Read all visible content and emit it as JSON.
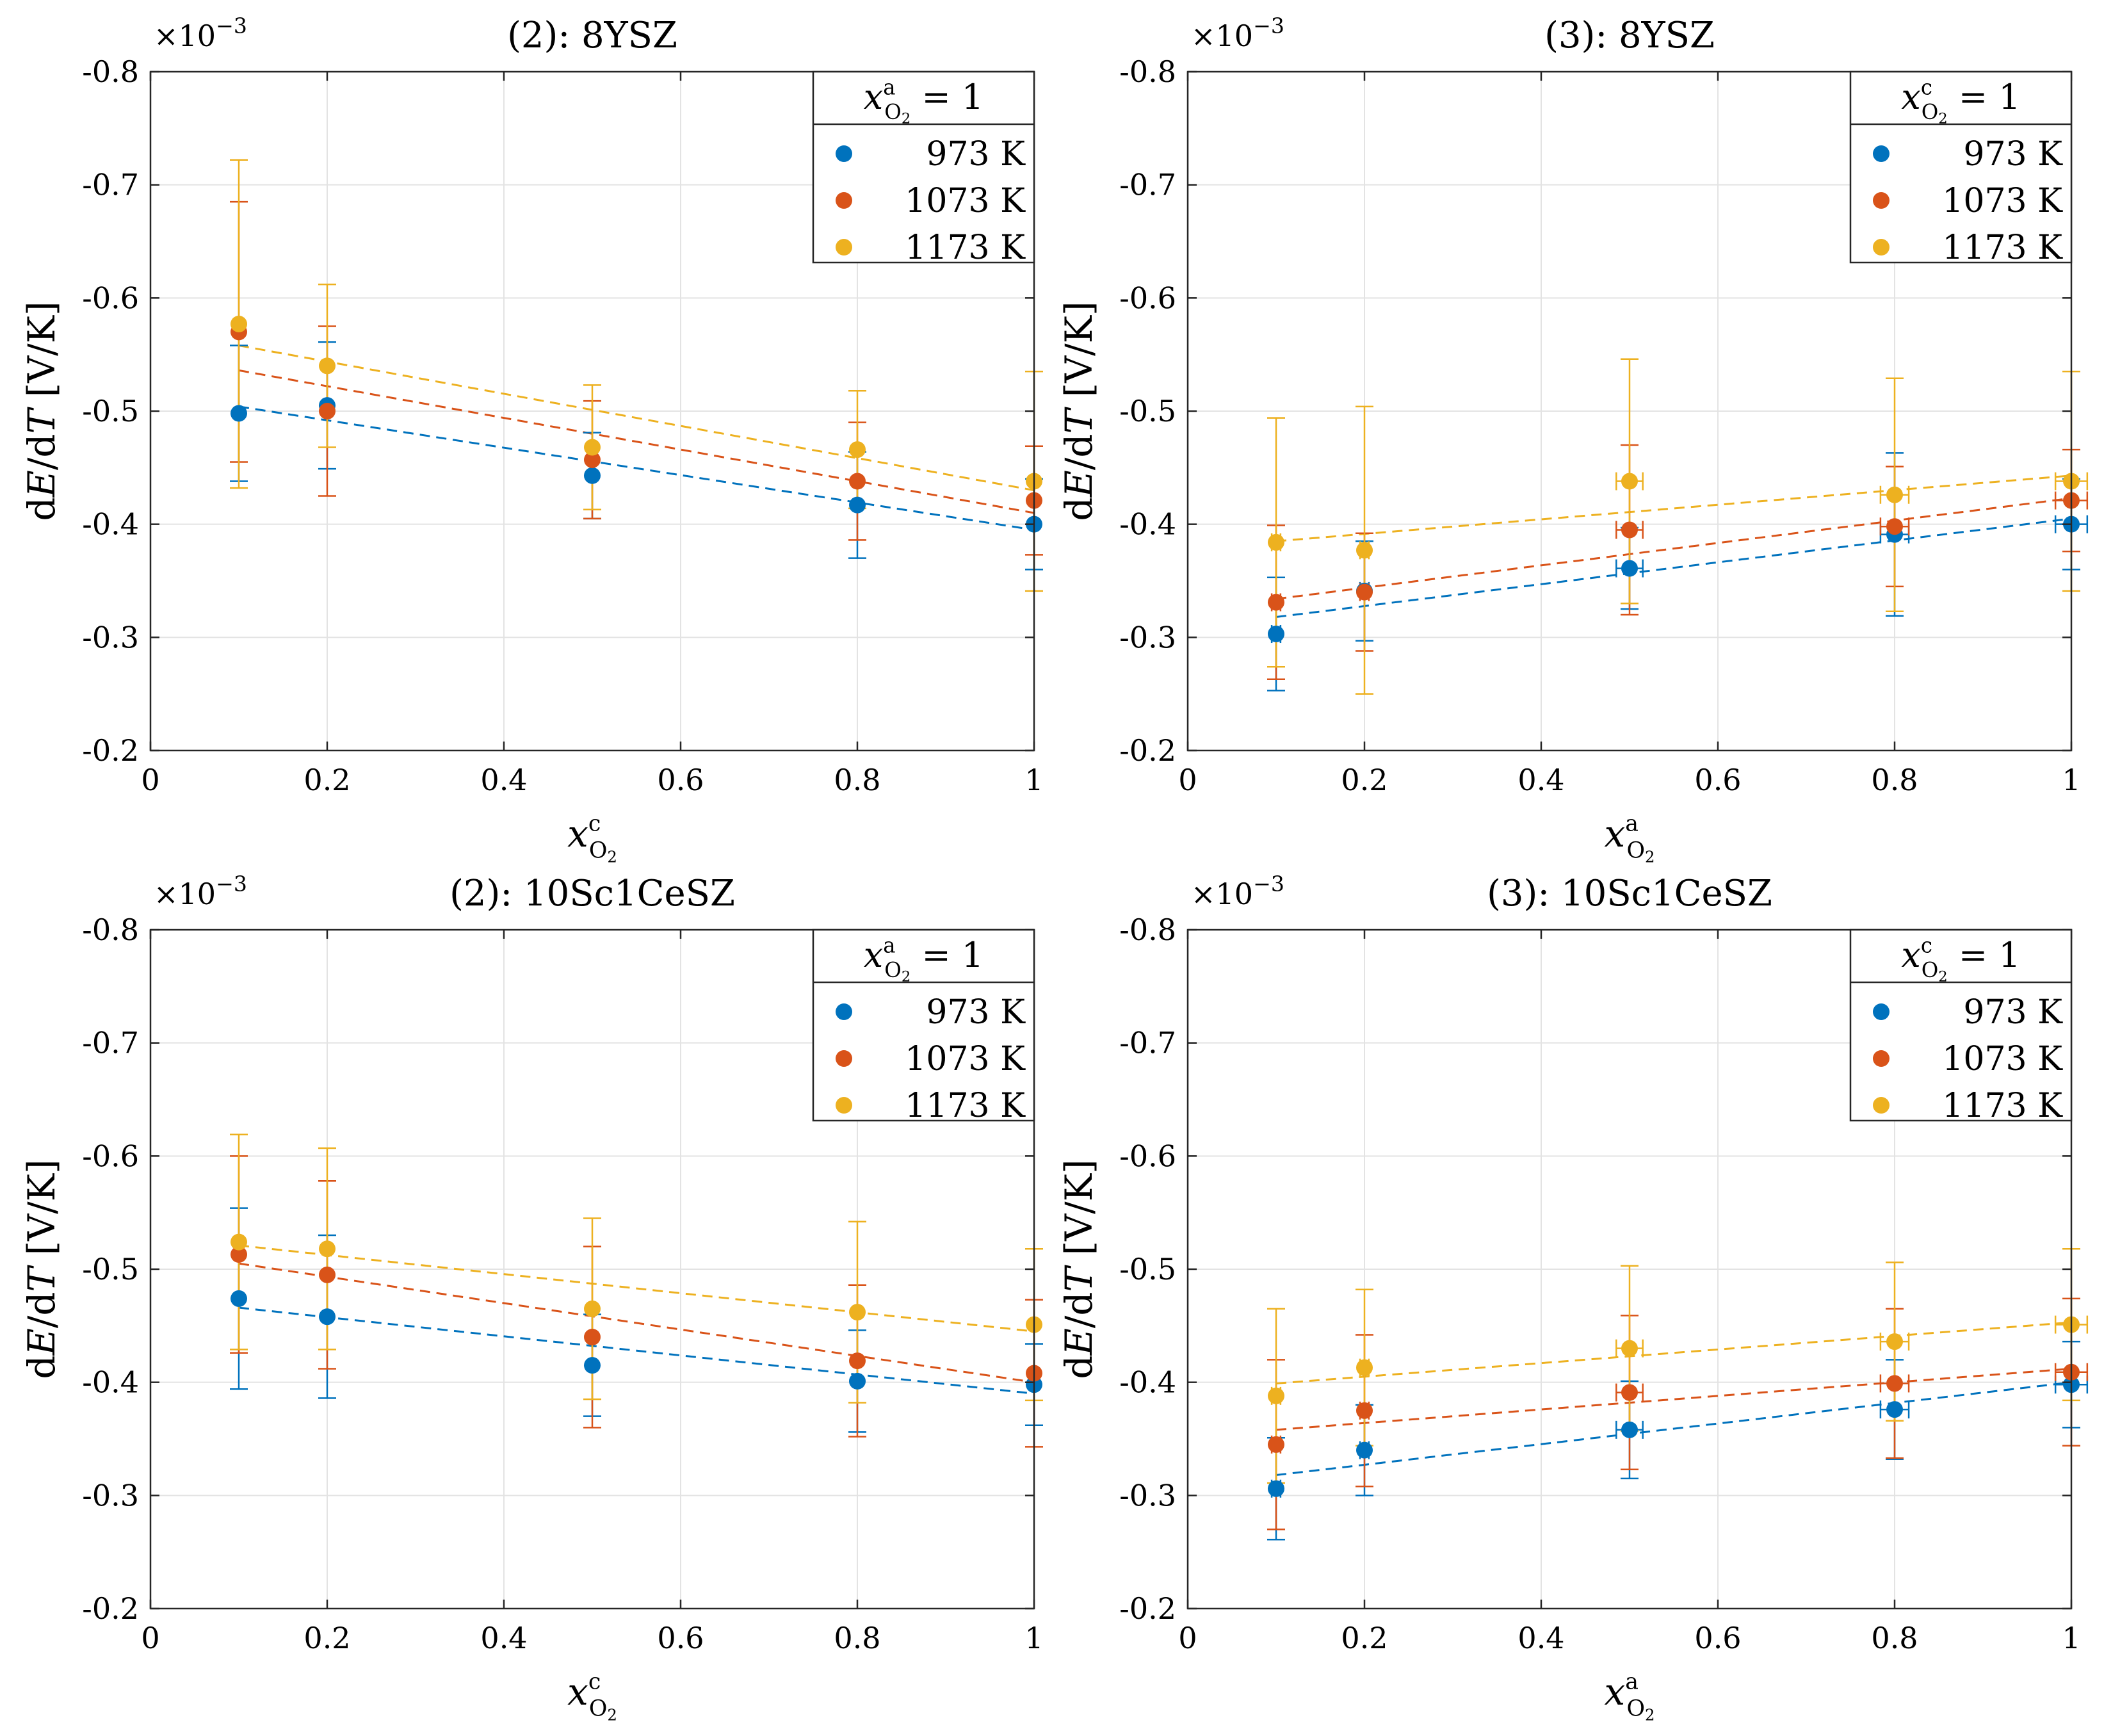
{
  "figure": {
    "panels": [
      {
        "title": "(2):  8YSZ",
        "xlabel": "x^c_O2",
        "ylabel": "dE/dT [V/K]",
        "multiplier": "×10^−3",
        "legend_title": "x^a_O2 = 1"
      },
      {
        "title": "(3):  8YSZ",
        "xlabel": "x^a_O2",
        "ylabel": "dE/dT [V/K]",
        "multiplier": "×10^−3",
        "legend_title": "x^c_O2 = 1"
      },
      {
        "title": "(2):  10Sc1CeSZ",
        "xlabel": "x^c_O2",
        "ylabel": "dE/dT [V/K]",
        "multiplier": "×10^−3",
        "legend_title": "x^a_O2 = 1"
      },
      {
        "title": "(3):  10Sc1CeSZ",
        "xlabel": "x^a_O2",
        "ylabel": "dE/dT [V/K]",
        "multiplier": "×10^−3",
        "legend_title": "x^c_O2 = 1"
      }
    ]
  },
  "colors": {
    "973 K": "#0072BD",
    "1073 K": "#D95319",
    "1173 K": "#EDB120",
    "grid": "#e3e3e3",
    "axis": "#262626"
  },
  "chart_data": [
    {
      "type": "scatter",
      "title": "(2):  8YSZ",
      "xlabel": "x^c_O2",
      "ylabel": "dE/dT [V/K]",
      "xlim": [
        0,
        1
      ],
      "ylim": [
        -0.8,
        -0.2
      ],
      "y_direction": "reversed",
      "y_scale_label": "×10^−3",
      "xticks": [
        "0",
        "0.2",
        "0.4",
        "0.6",
        "0.8",
        "1"
      ],
      "yticks": [
        "-0.8",
        "-0.7",
        "-0.6",
        "-0.5",
        "-0.4",
        "-0.3",
        "-0.2"
      ],
      "grid": true,
      "legend": "top-right",
      "legend_title": "x^a_O2 = 1",
      "x": [
        0.1,
        0.2,
        0.5,
        0.8,
        1.0
      ],
      "series": [
        {
          "name": "973 K",
          "values": [
            -0.498,
            -0.505,
            -0.443,
            -0.417,
            -0.4
          ],
          "err": [
            0.06,
            0.056,
            0.038,
            0.047,
            0.04
          ],
          "xerr": [
            0,
            0,
            0,
            0,
            0
          ],
          "fit": [
            -0.504,
            -0.395
          ]
        },
        {
          "name": "1073 K",
          "values": [
            -0.57,
            -0.5,
            -0.457,
            -0.438,
            -0.421
          ],
          "err": [
            0.115,
            0.075,
            0.052,
            0.052,
            0.048
          ],
          "xerr": [
            0,
            0,
            0,
            0,
            0
          ],
          "fit": [
            -0.536,
            -0.41
          ]
        },
        {
          "name": "1173 K",
          "values": [
            -0.577,
            -0.54,
            -0.468,
            -0.466,
            -0.438
          ],
          "err": [
            0.145,
            0.072,
            0.055,
            0.052,
            0.097
          ],
          "xerr": [
            0,
            0,
            0,
            0,
            0
          ],
          "fit": [
            -0.558,
            -0.43
          ]
        }
      ]
    },
    {
      "type": "scatter",
      "title": "(3):  8YSZ",
      "xlabel": "x^a_O2",
      "ylabel": "dE/dT [V/K]",
      "xlim": [
        0,
        1
      ],
      "ylim": [
        -0.8,
        -0.2
      ],
      "y_direction": "reversed",
      "y_scale_label": "×10^−3",
      "xticks": [
        "0",
        "0.2",
        "0.4",
        "0.6",
        "0.8",
        "1"
      ],
      "yticks": [
        "-0.8",
        "-0.7",
        "-0.6",
        "-0.5",
        "-0.4",
        "-0.3",
        "-0.2"
      ],
      "grid": true,
      "legend": "top-right",
      "legend_title": "x^c_O2 = 1",
      "x": [
        0.1,
        0.2,
        0.5,
        0.8,
        1.0
      ],
      "series": [
        {
          "name": "973 K",
          "values": [
            -0.303,
            -0.341,
            -0.361,
            -0.391,
            -0.4
          ],
          "err": [
            0.05,
            0.044,
            0.036,
            0.072,
            0.04
          ],
          "xerr": [
            0.005,
            0.005,
            0.015,
            0.016,
            0.018
          ],
          "fit": [
            -0.318,
            -0.405
          ]
        },
        {
          "name": "1073 K",
          "values": [
            -0.331,
            -0.34,
            -0.395,
            -0.398,
            -0.421
          ],
          "err": [
            0.068,
            0.052,
            0.075,
            0.053,
            0.045
          ],
          "xerr": [
            0.005,
            0.005,
            0.015,
            0.016,
            0.018
          ],
          "fit": [
            -0.334,
            -0.423
          ]
        },
        {
          "name": "1173 K",
          "values": [
            -0.384,
            -0.377,
            -0.438,
            -0.426,
            -0.438
          ],
          "err": [
            0.11,
            0.127,
            0.108,
            0.103,
            0.097
          ],
          "xerr": [
            0.005,
            0.005,
            0.015,
            0.016,
            0.018
          ],
          "fit": [
            -0.385,
            -0.443
          ]
        }
      ]
    },
    {
      "type": "scatter",
      "title": "(2):  10Sc1CeSZ",
      "xlabel": "x^c_O2",
      "ylabel": "dE/dT [V/K]",
      "xlim": [
        0,
        1
      ],
      "ylim": [
        -0.8,
        -0.2
      ],
      "y_direction": "reversed",
      "y_scale_label": "×10^−3",
      "xticks": [
        "0",
        "0.2",
        "0.4",
        "0.6",
        "0.8",
        "1"
      ],
      "yticks": [
        "-0.8",
        "-0.7",
        "-0.6",
        "-0.5",
        "-0.4",
        "-0.3",
        "-0.2"
      ],
      "grid": true,
      "legend": "top-right",
      "legend_title": "x^a_O2 = 1",
      "x": [
        0.1,
        0.2,
        0.5,
        0.8,
        1.0
      ],
      "series": [
        {
          "name": "973 K",
          "values": [
            -0.474,
            -0.458,
            -0.415,
            -0.401,
            -0.398
          ],
          "err": [
            0.08,
            0.072,
            0.045,
            0.045,
            0.036
          ],
          "xerr": [
            0,
            0,
            0,
            0,
            0
          ],
          "fit": [
            -0.466,
            -0.39
          ]
        },
        {
          "name": "1073 K",
          "values": [
            -0.513,
            -0.495,
            -0.44,
            -0.419,
            -0.408
          ],
          "err": [
            0.087,
            0.083,
            0.08,
            0.067,
            0.065
          ],
          "xerr": [
            0,
            0,
            0,
            0,
            0
          ],
          "fit": [
            -0.505,
            -0.4
          ]
        },
        {
          "name": "1173 K",
          "values": [
            -0.524,
            -0.518,
            -0.465,
            -0.462,
            -0.451
          ],
          "err": [
            0.095,
            0.089,
            0.08,
            0.08,
            0.067
          ],
          "xerr": [
            0,
            0,
            0,
            0,
            0
          ],
          "fit": [
            -0.521,
            -0.445
          ]
        }
      ]
    },
    {
      "type": "scatter",
      "title": "(3):  10Sc1CeSZ",
      "xlabel": "x^a_O2",
      "ylabel": "dE/dT [V/K]",
      "xlim": [
        0,
        1
      ],
      "ylim": [
        -0.8,
        -0.2
      ],
      "y_direction": "reversed",
      "y_scale_label": "×10^−3",
      "xticks": [
        "0",
        "0.2",
        "0.4",
        "0.6",
        "0.8",
        "1"
      ],
      "yticks": [
        "-0.8",
        "-0.7",
        "-0.6",
        "-0.5",
        "-0.4",
        "-0.3",
        "-0.2"
      ],
      "grid": true,
      "legend": "top-right",
      "legend_title": "x^c_O2 = 1",
      "x": [
        0.1,
        0.2,
        0.5,
        0.8,
        1.0
      ],
      "series": [
        {
          "name": "973 K",
          "values": [
            -0.306,
            -0.34,
            -0.358,
            -0.376,
            -0.398
          ],
          "err": [
            0.045,
            0.04,
            0.043,
            0.044,
            0.038
          ],
          "xerr": [
            0.005,
            0.005,
            0.015,
            0.016,
            0.018
          ],
          "fit": [
            -0.318,
            -0.4
          ]
        },
        {
          "name": "1073 K",
          "values": [
            -0.345,
            -0.375,
            -0.391,
            -0.399,
            -0.409
          ],
          "err": [
            0.075,
            0.067,
            0.068,
            0.066,
            0.065
          ],
          "xerr": [
            0.005,
            0.005,
            0.015,
            0.016,
            0.018
          ],
          "fit": [
            -0.358,
            -0.412
          ]
        },
        {
          "name": "1173 K",
          "values": [
            -0.388,
            -0.413,
            -0.43,
            -0.436,
            -0.451
          ],
          "err": [
            0.077,
            0.069,
            0.073,
            0.07,
            0.067
          ],
          "xerr": [
            0.005,
            0.005,
            0.015,
            0.016,
            0.018
          ],
          "fit": [
            -0.399,
            -0.453
          ]
        }
      ]
    }
  ]
}
